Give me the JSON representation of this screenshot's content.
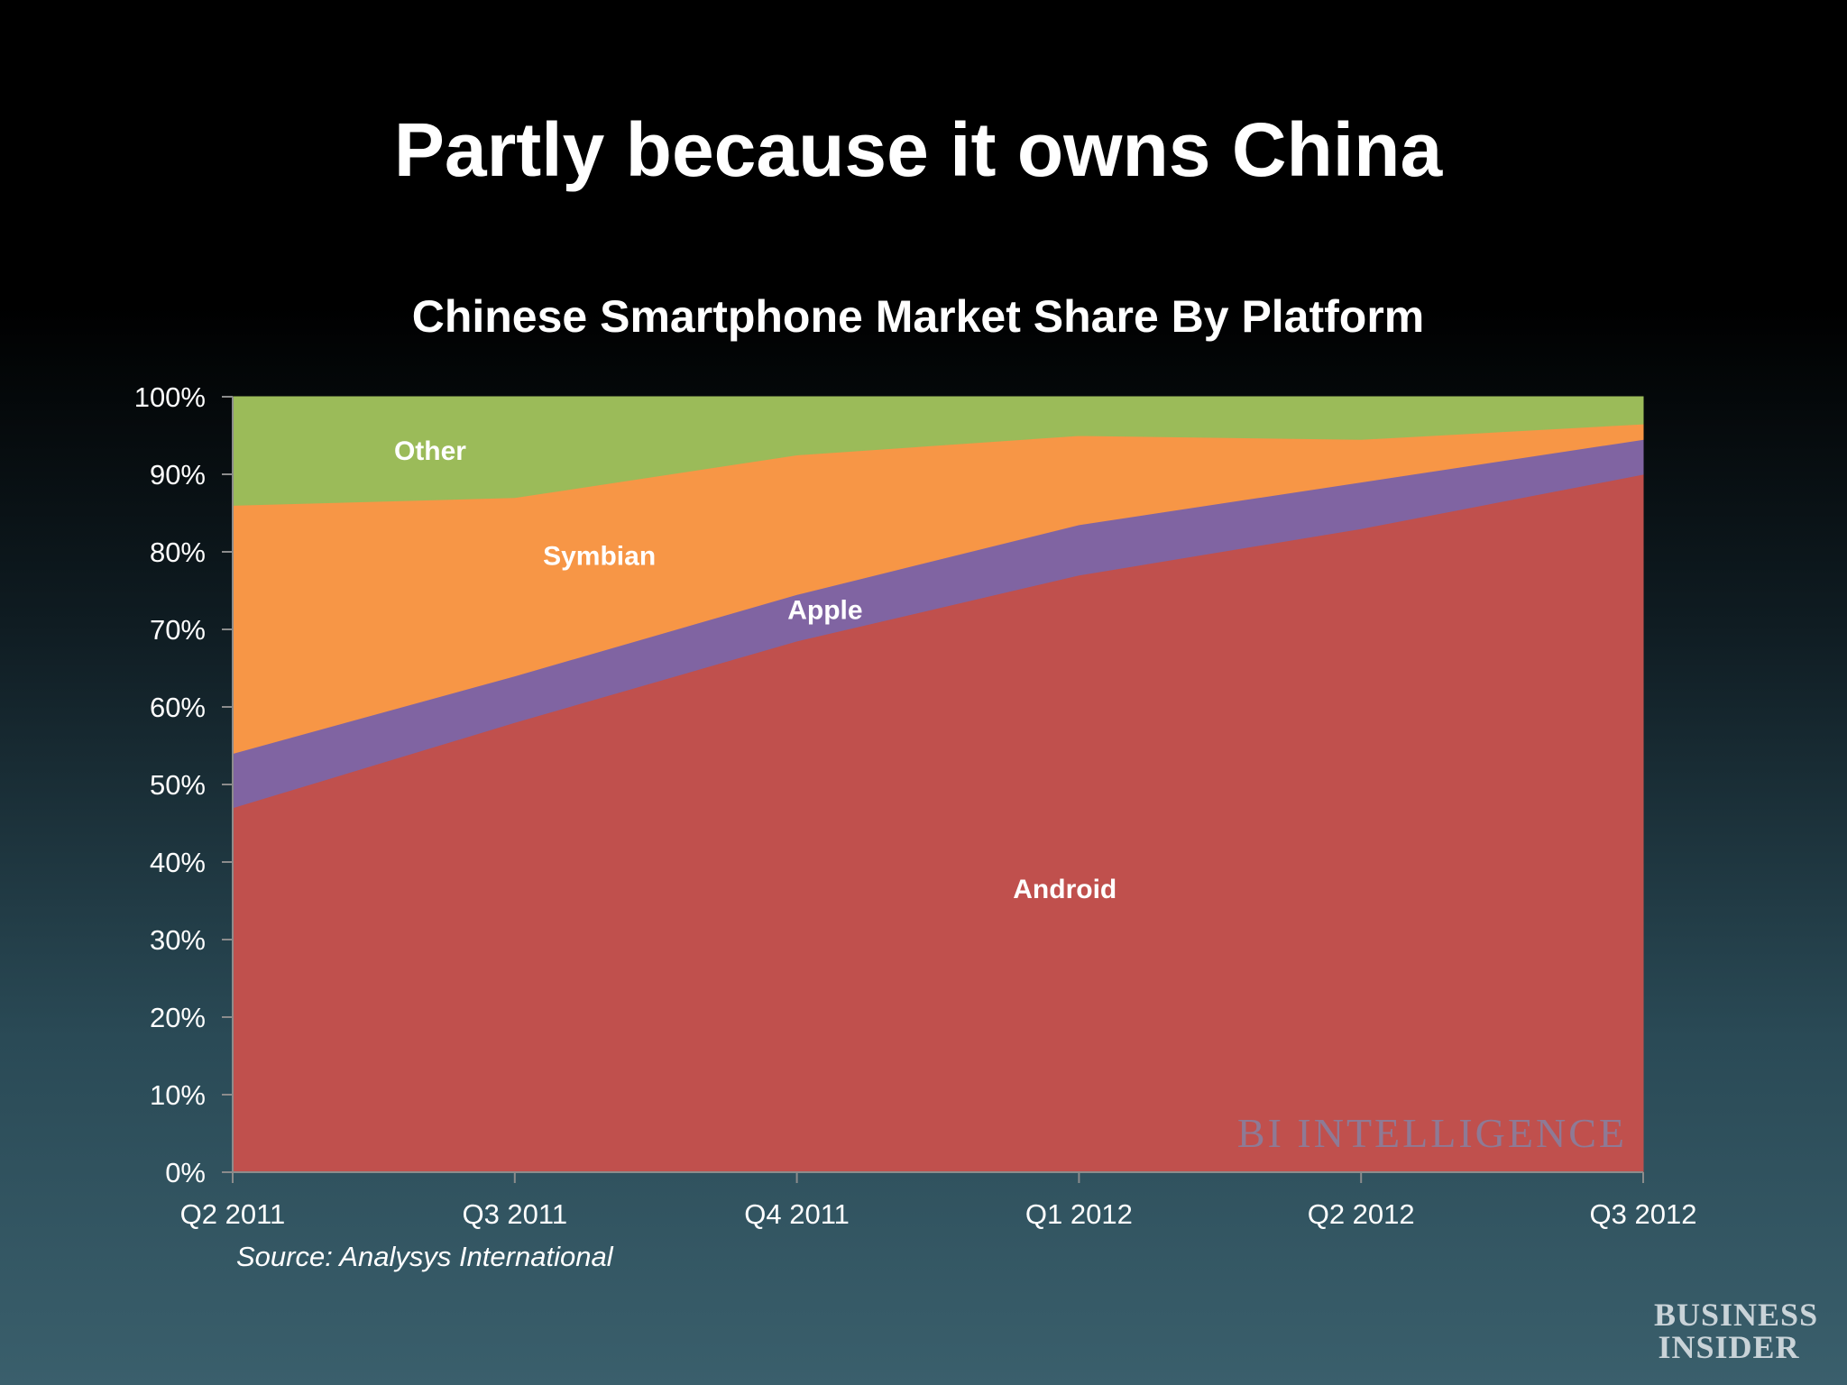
{
  "slide_title": "Partly because it owns China",
  "source": "Source: Analysys International",
  "watermark": "BI INTELLIGENCE",
  "logo": {
    "line1": "BUSINESS",
    "line2": "INSIDER"
  },
  "chart_data": {
    "type": "area",
    "stacked": true,
    "title": "Chinese Smartphone Market Share By Platform",
    "xlabel": "",
    "ylabel": "",
    "categories": [
      "Q2 2011",
      "Q3 2011",
      "Q4 2011",
      "Q1 2012",
      "Q2 2012",
      "Q3 2012"
    ],
    "ylim": [
      0,
      100
    ],
    "y_ticks": [
      "0%",
      "10%",
      "20%",
      "30%",
      "40%",
      "50%",
      "60%",
      "70%",
      "80%",
      "90%",
      "100%"
    ],
    "series": [
      {
        "name": "Android",
        "values": [
          47,
          58,
          68.5,
          77,
          83,
          90
        ],
        "color": "#c0504d"
      },
      {
        "name": "Apple",
        "values": [
          7,
          6,
          6,
          6.5,
          6,
          4.5
        ],
        "color": "#8064a2"
      },
      {
        "name": "Symbian",
        "values": [
          32,
          23,
          18,
          11.5,
          5.5,
          2
        ],
        "color": "#f79646"
      },
      {
        "name": "Other",
        "values": [
          14,
          13,
          7.5,
          5,
          5.5,
          3.5
        ],
        "color": "#9bbb59"
      }
    ],
    "area_labels": [
      {
        "series": "Other",
        "x": 0.7,
        "y": 93
      },
      {
        "series": "Symbian",
        "x": 1.3,
        "y": 79.5
      },
      {
        "series": "Apple",
        "x": 2.1,
        "y": 72.5
      },
      {
        "series": "Android",
        "x": 2.95,
        "y": 36.5
      }
    ],
    "grid": false,
    "legend": "none"
  }
}
